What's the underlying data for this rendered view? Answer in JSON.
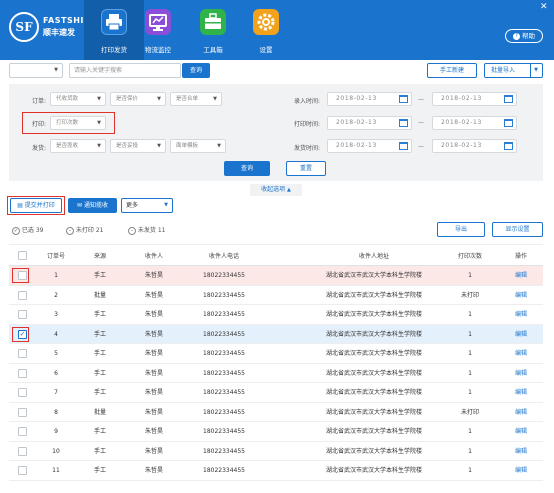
{
  "header": {
    "brand_logo": "SF",
    "brand_en": "FASTSHIP",
    "brand_cn": "顺丰速发",
    "nav": [
      {
        "label": "打印发货",
        "icon": "printer-icon",
        "color": "#1a74cd"
      },
      {
        "label": "物流监控",
        "icon": "monitor-icon",
        "color": "#8a4ed9"
      },
      {
        "label": "工具箱",
        "icon": "toolbox-icon",
        "color": "#2fb34a"
      },
      {
        "label": "设置",
        "icon": "gear-icon",
        "color": "#f3a21b"
      }
    ],
    "help_label": "帮助"
  },
  "search": {
    "placeholder": "请输入关键字搜索",
    "query_label": "查询",
    "manual_new_label": "手工新建",
    "batch_import_label": "批量导入"
  },
  "filters": {
    "order_label": "订单:",
    "order_selects": [
      "代收货款",
      "是否保价",
      "是否合单"
    ],
    "print_label": "打印:",
    "print_select": "打印次数",
    "ship_label": "发货:",
    "ship_selects": [
      "是否揽收",
      "是否妥投",
      "面单模板"
    ],
    "entry_time_label": "录入时间:",
    "print_time_label": "打印时间:",
    "ship_time_label": "发货时间:",
    "date_value": "2018-02-13",
    "query_label": "查询",
    "reset_label": "重置",
    "collapse_label": "收起选项"
  },
  "actions": {
    "submit_print_label": "提交并打印",
    "notify_pickup_label": "通知揽收",
    "more_label": "更多",
    "export_label": "导出",
    "display_settings_label": "显示设置"
  },
  "stats": {
    "selected": "已选 39",
    "unprinted": "未打印 21",
    "unshipped": "未发货 11"
  },
  "table": {
    "headers": [
      "订单号",
      "来源",
      "收件人",
      "收件人电话",
      "收件人地址",
      "打印次数",
      "操作"
    ],
    "rows": [
      {
        "id": "1",
        "source": "手工",
        "name": "朱哲昊",
        "phone": "18022334455",
        "address": "湖北省武汉市武汉大学本科生学院楼",
        "prints": "1",
        "op": "编辑"
      },
      {
        "id": "2",
        "source": "批量",
        "name": "朱哲昊",
        "phone": "18022334455",
        "address": "湖北省武汉市武汉大学本科生学院楼",
        "prints": "未打印",
        "op": "编辑"
      },
      {
        "id": "3",
        "source": "手工",
        "name": "朱哲昊",
        "phone": "18022334455",
        "address": "湖北省武汉市武汉大学本科生学院楼",
        "prints": "1",
        "op": "编辑"
      },
      {
        "id": "4",
        "source": "手工",
        "name": "朱哲昊",
        "phone": "18022334455",
        "address": "湖北省武汉市武汉大学本科生学院楼",
        "prints": "1",
        "op": "编辑"
      },
      {
        "id": "5",
        "source": "手工",
        "name": "朱哲昊",
        "phone": "18022334455",
        "address": "湖北省武汉市武汉大学本科生学院楼",
        "prints": "1",
        "op": "编辑"
      },
      {
        "id": "6",
        "source": "手工",
        "name": "朱哲昊",
        "phone": "18022334455",
        "address": "湖北省武汉市武汉大学本科生学院楼",
        "prints": "1",
        "op": "编辑"
      },
      {
        "id": "7",
        "source": "手工",
        "name": "朱哲昊",
        "phone": "18022334455",
        "address": "湖北省武汉市武汉大学本科生学院楼",
        "prints": "1",
        "op": "编辑"
      },
      {
        "id": "8",
        "source": "批量",
        "name": "朱哲昊",
        "phone": "18022334455",
        "address": "湖北省武汉市武汉大学本科生学院楼",
        "prints": "未打印",
        "op": "编辑"
      },
      {
        "id": "9",
        "source": "手工",
        "name": "朱哲昊",
        "phone": "18022334455",
        "address": "湖北省武汉市武汉大学本科生学院楼",
        "prints": "1",
        "op": "编辑"
      },
      {
        "id": "10",
        "source": "手工",
        "name": "朱哲昊",
        "phone": "18022334455",
        "address": "湖北省武汉市武汉大学本科生学院楼",
        "prints": "1",
        "op": "编辑"
      },
      {
        "id": "11",
        "source": "手工",
        "name": "朱哲昊",
        "phone": "18022334455",
        "address": "湖北省武汉市武汉大学本科生学院楼",
        "prints": "1",
        "op": "编辑"
      }
    ]
  }
}
